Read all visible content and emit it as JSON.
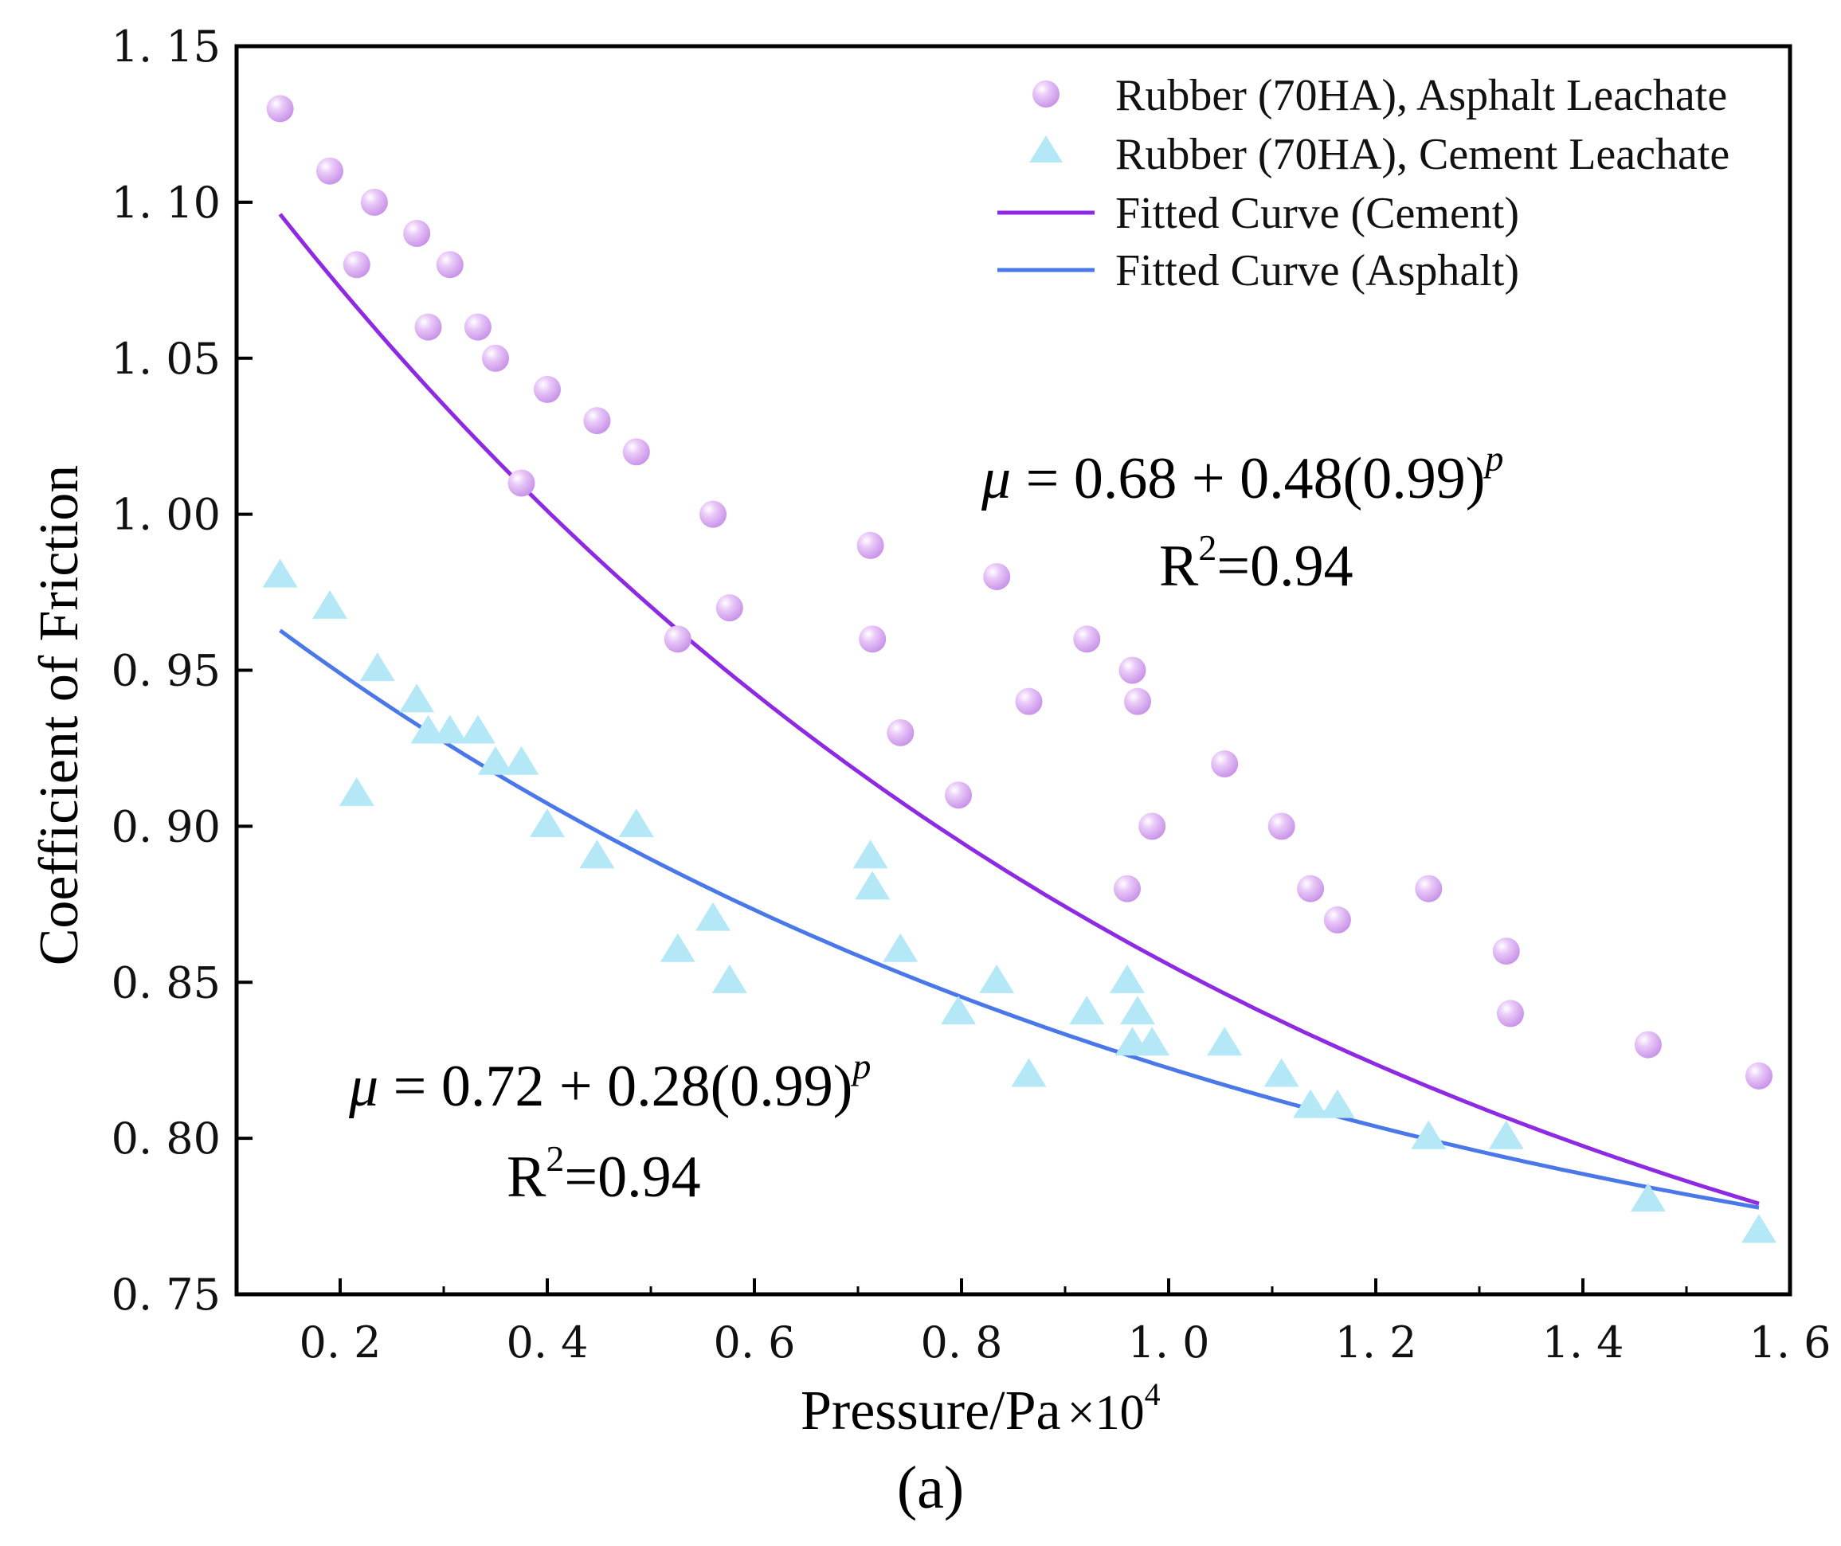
{
  "chart_data": {
    "type": "scatter",
    "xlabel": "Pressure/Pa",
    "xlabel_multiplier": "×10",
    "xlabel_exponent": "4",
    "ylabel": "Coefficient of Friction",
    "xlim": [
      0.1,
      1.6
    ],
    "ylim": [
      0.75,
      1.15
    ],
    "x_ticks": [
      0.2,
      0.4,
      0.6,
      0.8,
      1.0,
      1.2,
      1.4,
      1.6
    ],
    "x_tick_labels": [
      "0. 2",
      "0. 4",
      "0. 6",
      "0. 8",
      "1. 0",
      "1. 2",
      "1. 4",
      "1. 6"
    ],
    "y_ticks": [
      0.75,
      0.8,
      0.85,
      0.9,
      0.95,
      1.0,
      1.05,
      1.1,
      1.15
    ],
    "y_tick_labels": [
      "0. 75",
      "0. 80",
      "0. 85",
      "0. 90",
      "0. 95",
      "1. 00",
      "1. 05",
      "1. 10",
      "1. 15"
    ],
    "panel_label": "(a)",
    "legend": {
      "position": "top-right",
      "entries": [
        "Rubber (70HA), Asphalt Leachate",
        "Rubber (70HA), Cement Leachate",
        "Fitted Curve (Cement)",
        "Fitted Curve (Asphalt)"
      ]
    },
    "series": [
      {
        "name": "Rubber (70HA), Asphalt Leachate",
        "marker": "circle",
        "color": "#d9aaf0",
        "x": [
          0.142,
          0.19,
          0.216,
          0.233,
          0.274,
          0.285,
          0.306,
          0.333,
          0.35,
          0.375,
          0.4,
          0.448,
          0.486,
          0.526,
          0.56,
          0.576,
          0.712,
          0.714,
          0.741,
          0.797,
          0.834,
          0.865,
          0.921,
          0.96,
          0.965,
          0.97,
          0.984,
          1.054,
          1.109,
          1.137,
          1.163,
          1.251,
          1.326,
          1.33,
          1.463,
          1.57
        ],
        "y": [
          1.13,
          1.11,
          1.08,
          1.1,
          1.09,
          1.06,
          1.08,
          1.06,
          1.05,
          1.01,
          1.04,
          1.03,
          1.02,
          0.96,
          1.0,
          0.97,
          0.99,
          0.96,
          0.93,
          0.91,
          0.98,
          0.94,
          0.96,
          0.88,
          0.95,
          0.94,
          0.9,
          0.92,
          0.9,
          0.88,
          0.87,
          0.88,
          0.86,
          0.84,
          0.83,
          0.82
        ]
      },
      {
        "name": "Rubber (70HA), Cement Leachate",
        "marker": "triangle",
        "color": "#b5e8f7",
        "x": [
          0.142,
          0.19,
          0.216,
          0.236,
          0.274,
          0.285,
          0.306,
          0.333,
          0.35,
          0.375,
          0.4,
          0.448,
          0.486,
          0.526,
          0.56,
          0.576,
          0.712,
          0.714,
          0.741,
          0.797,
          0.834,
          0.865,
          0.921,
          0.96,
          0.965,
          0.97,
          0.984,
          1.054,
          1.109,
          1.137,
          1.163,
          1.251,
          1.326,
          1.463,
          1.57
        ],
        "y": [
          0.98,
          0.97,
          0.91,
          0.95,
          0.94,
          0.93,
          0.93,
          0.93,
          0.92,
          0.92,
          0.9,
          0.89,
          0.9,
          0.86,
          0.87,
          0.85,
          0.89,
          0.88,
          0.86,
          0.84,
          0.85,
          0.82,
          0.84,
          0.85,
          0.83,
          0.84,
          0.83,
          0.83,
          0.82,
          0.81,
          0.81,
          0.8,
          0.8,
          0.78,
          0.77
        ]
      },
      {
        "name": "Fitted Curve (Cement)",
        "type": "line",
        "color": "#8e2be2",
        "model": {
          "a": 0.68,
          "b": 0.48,
          "base": 0.99,
          "scale": 100
        },
        "x_range": [
          0.142,
          1.57
        ]
      },
      {
        "name": "Fitted Curve (Asphalt)",
        "type": "line",
        "color": "#4a78e8",
        "model": {
          "a": 0.72,
          "b": 0.28,
          "base": 0.99,
          "scale": 100
        },
        "x_range": [
          0.142,
          1.57
        ]
      }
    ],
    "annotations": [
      {
        "id": "eq_upper",
        "mu": "μ",
        "text": " = 0.68 + 0.48(0.99)",
        "sup": "p",
        "r2": "R",
        "r2_sup": "2",
        "r2_val": "=0.94"
      },
      {
        "id": "eq_lower",
        "mu": "μ",
        "text": " = 0.72 + 0.28(0.99)",
        "sup": "p",
        "r2": "R",
        "r2_sup": "2",
        "r2_val": "=0.94"
      }
    ]
  }
}
